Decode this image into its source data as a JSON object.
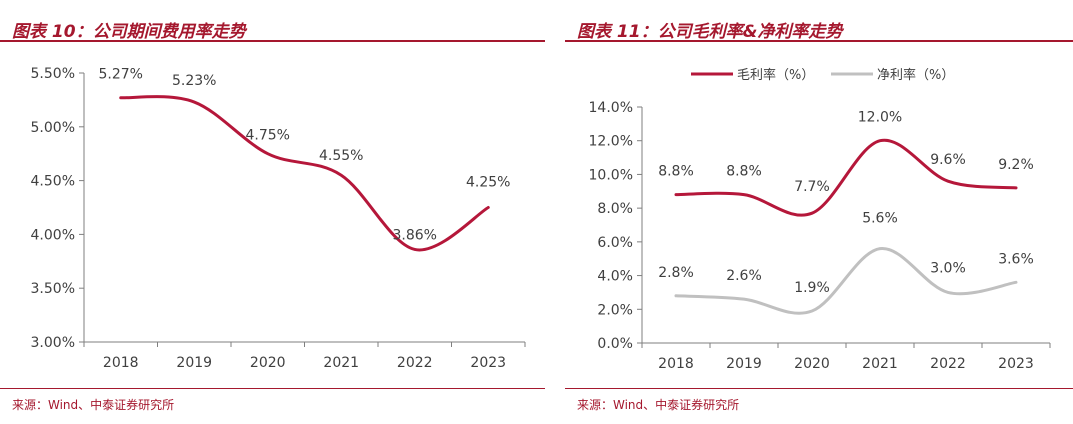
{
  "left": {
    "title": "图表 10：公司期间费用率走势",
    "source": "来源：Wind、中泰证券研究所",
    "chart_data": {
      "type": "line",
      "title": "公司期间费用率走势",
      "categories": [
        "2018",
        "2019",
        "2020",
        "2021",
        "2022",
        "2023"
      ],
      "series": [
        {
          "name": "期间费用率",
          "values": [
            5.27,
            5.23,
            4.75,
            4.55,
            3.86,
            4.25
          ],
          "color": "#b5173a",
          "labels": [
            "5.27%",
            "5.23%",
            "4.75%",
            "4.55%",
            "3.86%",
            "4.25%"
          ]
        }
      ],
      "ylim": [
        3.0,
        5.5
      ],
      "yticks": [
        "3.00%",
        "3.50%",
        "4.00%",
        "4.50%",
        "5.00%",
        "5.50%"
      ],
      "xlabel": "",
      "ylabel": ""
    }
  },
  "right": {
    "title": "图表 11：公司毛利率&净利率走势",
    "source": "来源：Wind、中泰证券研究所",
    "chart_data": {
      "type": "line",
      "title": "公司毛利率&净利率走势",
      "categories": [
        "2018",
        "2019",
        "2020",
        "2021",
        "2022",
        "2023"
      ],
      "series": [
        {
          "name": "毛利率（%）",
          "values": [
            8.8,
            8.8,
            7.7,
            12.0,
            9.6,
            9.2
          ],
          "color": "#b5173a",
          "labels": [
            "8.8%",
            "8.8%",
            "7.7%",
            "12.0%",
            "9.6%",
            "9.2%"
          ]
        },
        {
          "name": "净利率（%）",
          "values": [
            2.8,
            2.6,
            1.9,
            5.6,
            3.0,
            3.6
          ],
          "color": "#c0c0c0",
          "labels": [
            "2.8%",
            "2.6%",
            "1.9%",
            "5.6%",
            "3.0%",
            "3.6%"
          ]
        }
      ],
      "ylim": [
        0,
        14
      ],
      "yticks": [
        "0.0%",
        "2.0%",
        "4.0%",
        "6.0%",
        "8.0%",
        "10.0%",
        "12.0%",
        "14.0%"
      ],
      "legend": "top",
      "xlabel": "",
      "ylabel": ""
    }
  }
}
